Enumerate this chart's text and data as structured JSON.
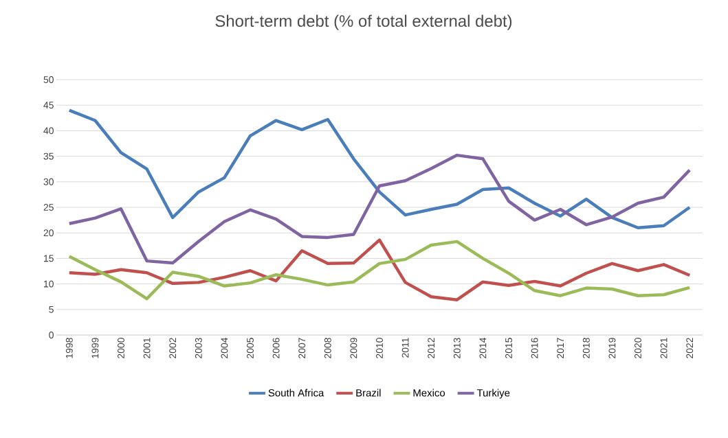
{
  "chart_data": {
    "type": "line",
    "title": "Short-term debt (% of total external debt)",
    "categories": [
      "1998",
      "1999",
      "2000",
      "2001",
      "2002",
      "2003",
      "2004",
      "2005",
      "2006",
      "2007",
      "2008",
      "2009",
      "2010",
      "2011",
      "2012",
      "2013",
      "2014",
      "2015",
      "2016",
      "2017",
      "2018",
      "2019",
      "2020",
      "2021",
      "2022"
    ],
    "series": [
      {
        "name": "South Africa",
        "color": "#4a7ebb",
        "values": [
          44,
          42,
          35.7,
          32.5,
          23,
          28,
          30.8,
          39,
          42,
          40.2,
          42.2,
          34.5,
          28,
          23.5,
          24.6,
          25.6,
          28.5,
          28.8,
          25.8,
          23.3,
          26.6,
          23,
          21,
          21.4,
          25
        ]
      },
      {
        "name": "Brazil",
        "color": "#c0504d",
        "values": [
          12.2,
          11.9,
          12.8,
          12.2,
          10.1,
          10.3,
          11.3,
          12.6,
          10.6,
          16.5,
          14,
          14.1,
          18.6,
          10.3,
          7.5,
          6.9,
          10.4,
          9.7,
          10.5,
          9.6,
          12.1,
          14,
          12.6,
          13.8,
          11.7
        ]
      },
      {
        "name": "Mexico",
        "color": "#9bbb59",
        "values": [
          15.4,
          12.8,
          10.4,
          7.1,
          12.3,
          11.5,
          9.6,
          10.2,
          11.8,
          10.9,
          9.8,
          10.4,
          14,
          14.8,
          17.6,
          18.3,
          15,
          12.1,
          8.7,
          7.7,
          9.2,
          9,
          7.7,
          7.9,
          9.3
        ]
      },
      {
        "name": "Turkiye",
        "color": "#8064a2",
        "values": [
          21.8,
          22.9,
          24.7,
          14.5,
          14.1,
          18.3,
          22.2,
          24.5,
          22.7,
          19.3,
          19.1,
          19.7,
          29.2,
          30.2,
          32.6,
          35.2,
          34.5,
          26.2,
          22.5,
          24.6,
          21.6,
          23.1,
          25.8,
          27,
          32.3
        ]
      }
    ],
    "ylim": [
      0,
      50
    ],
    "yticks": [
      0,
      5,
      10,
      15,
      20,
      25,
      30,
      35,
      40,
      45,
      50
    ],
    "grid": "y",
    "legend": "bottom",
    "marker": "none",
    "line_style": "solid"
  }
}
